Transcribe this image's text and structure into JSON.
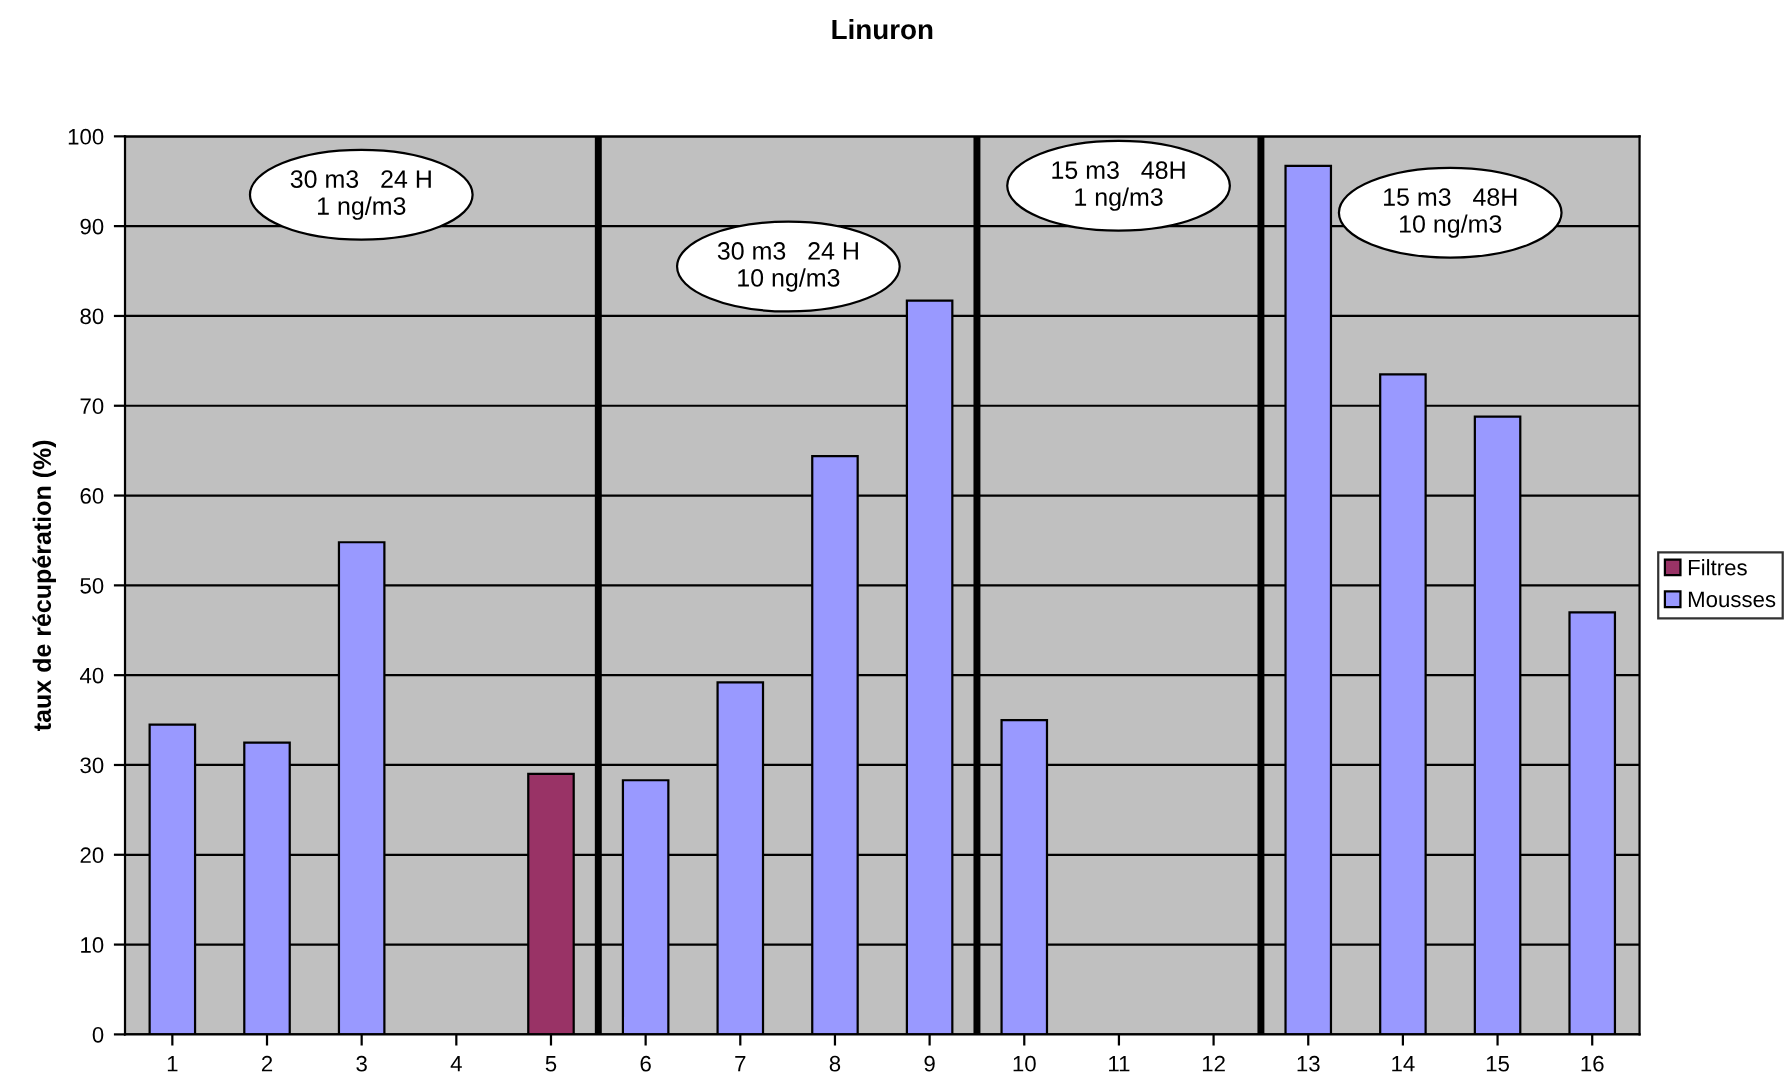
{
  "chart_data": {
    "type": "bar",
    "title": "Linuron",
    "ylabel": "taux de récupération (%)",
    "x": [
      1,
      2,
      3,
      4,
      5,
      6,
      7,
      8,
      9,
      10,
      11,
      12,
      13,
      14,
      15,
      16
    ],
    "xlim": [
      0.5,
      16.5
    ],
    "xticks": [
      1,
      2,
      3,
      4,
      5,
      6,
      7,
      8,
      9,
      10,
      11,
      12,
      13,
      14,
      15,
      16
    ],
    "ylim": [
      0,
      100
    ],
    "yticks": [
      0,
      10,
      20,
      30,
      40,
      50,
      60,
      70,
      80,
      90,
      100
    ],
    "grid": "y",
    "legend": "right",
    "series": [
      {
        "name": "Filtres",
        "color": "#993366",
        "values": [
          null,
          null,
          null,
          null,
          29,
          null,
          null,
          null,
          null,
          null,
          null,
          null,
          null,
          null,
          null,
          null
        ]
      },
      {
        "name": "Mousses",
        "color": "#9999ff",
        "values": [
          34.5,
          32.5,
          54.8,
          null,
          null,
          28.3,
          39.2,
          64.4,
          81.7,
          35,
          null,
          null,
          96.7,
          73.5,
          68.8,
          47
        ]
      }
    ],
    "ref_lines": [
      {
        "axis": "x",
        "value": 5.5,
        "color": "#000000"
      },
      {
        "axis": "x",
        "value": 9.5,
        "color": "#000000"
      },
      {
        "axis": "x",
        "value": 12.5,
        "color": "#000000"
      }
    ],
    "annotations": [
      "30 m3   24 H\n1 ng/m3",
      "30 m3   24 H\n10 ng/m3",
      "15 m3   48H\n1 ng/m3",
      "15 m3   48H\n10 ng/m3"
    ]
  }
}
